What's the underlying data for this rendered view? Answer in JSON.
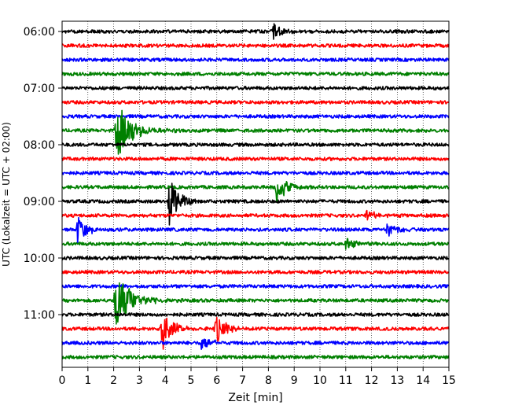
{
  "chart_data": {
    "type": "line",
    "title": "",
    "xlabel": "Zeit  [min]",
    "ylabel": "UTC (Lokalzeit = UTC + 02:00)",
    "xlim": [
      0,
      15
    ],
    "x_ticks": [
      "0",
      "1",
      "2",
      "3",
      "4",
      "5",
      "6",
      "7",
      "8",
      "9",
      "10",
      "11",
      "12",
      "13",
      "14",
      "15"
    ],
    "y_tick_labels": [
      "06:00",
      "07:00",
      "08:00",
      "09:00",
      "10:00",
      "11:00"
    ],
    "grid": "vertical-dotted",
    "trace_colors": [
      "#000000",
      "#ff0000",
      "#0000ff",
      "#008000"
    ],
    "start_time": "06:00",
    "end_time": "11:45",
    "trace_interval_min": 15,
    "trace_count": 24,
    "events": [
      {
        "trace_start": "06:00",
        "x_min": 8.2,
        "amplitude": 0.3
      },
      {
        "trace_start": "07:45",
        "x_min": 2.1,
        "amplitude": 1.0
      },
      {
        "trace_start": "08:45",
        "x_min": 8.3,
        "amplitude": 0.6
      },
      {
        "trace_start": "09:00",
        "x_min": 4.15,
        "amplitude": 0.9
      },
      {
        "trace_start": "09:30",
        "x_min": 0.6,
        "amplitude": 0.5
      },
      {
        "trace_start": "09:30",
        "x_min": 12.6,
        "amplitude": 0.3
      },
      {
        "trace_start": "09:15",
        "x_min": 11.8,
        "amplitude": 0.2
      },
      {
        "trace_start": "09:45",
        "x_min": 11.0,
        "amplitude": 0.2
      },
      {
        "trace_start": "10:45",
        "x_min": 2.05,
        "amplitude": 1.0
      },
      {
        "trace_start": "11:15",
        "x_min": 3.85,
        "amplitude": 0.8
      },
      {
        "trace_start": "11:15",
        "x_min": 5.95,
        "amplitude": 0.5
      },
      {
        "trace_start": "11:30",
        "x_min": 5.4,
        "amplitude": 0.3
      }
    ]
  }
}
